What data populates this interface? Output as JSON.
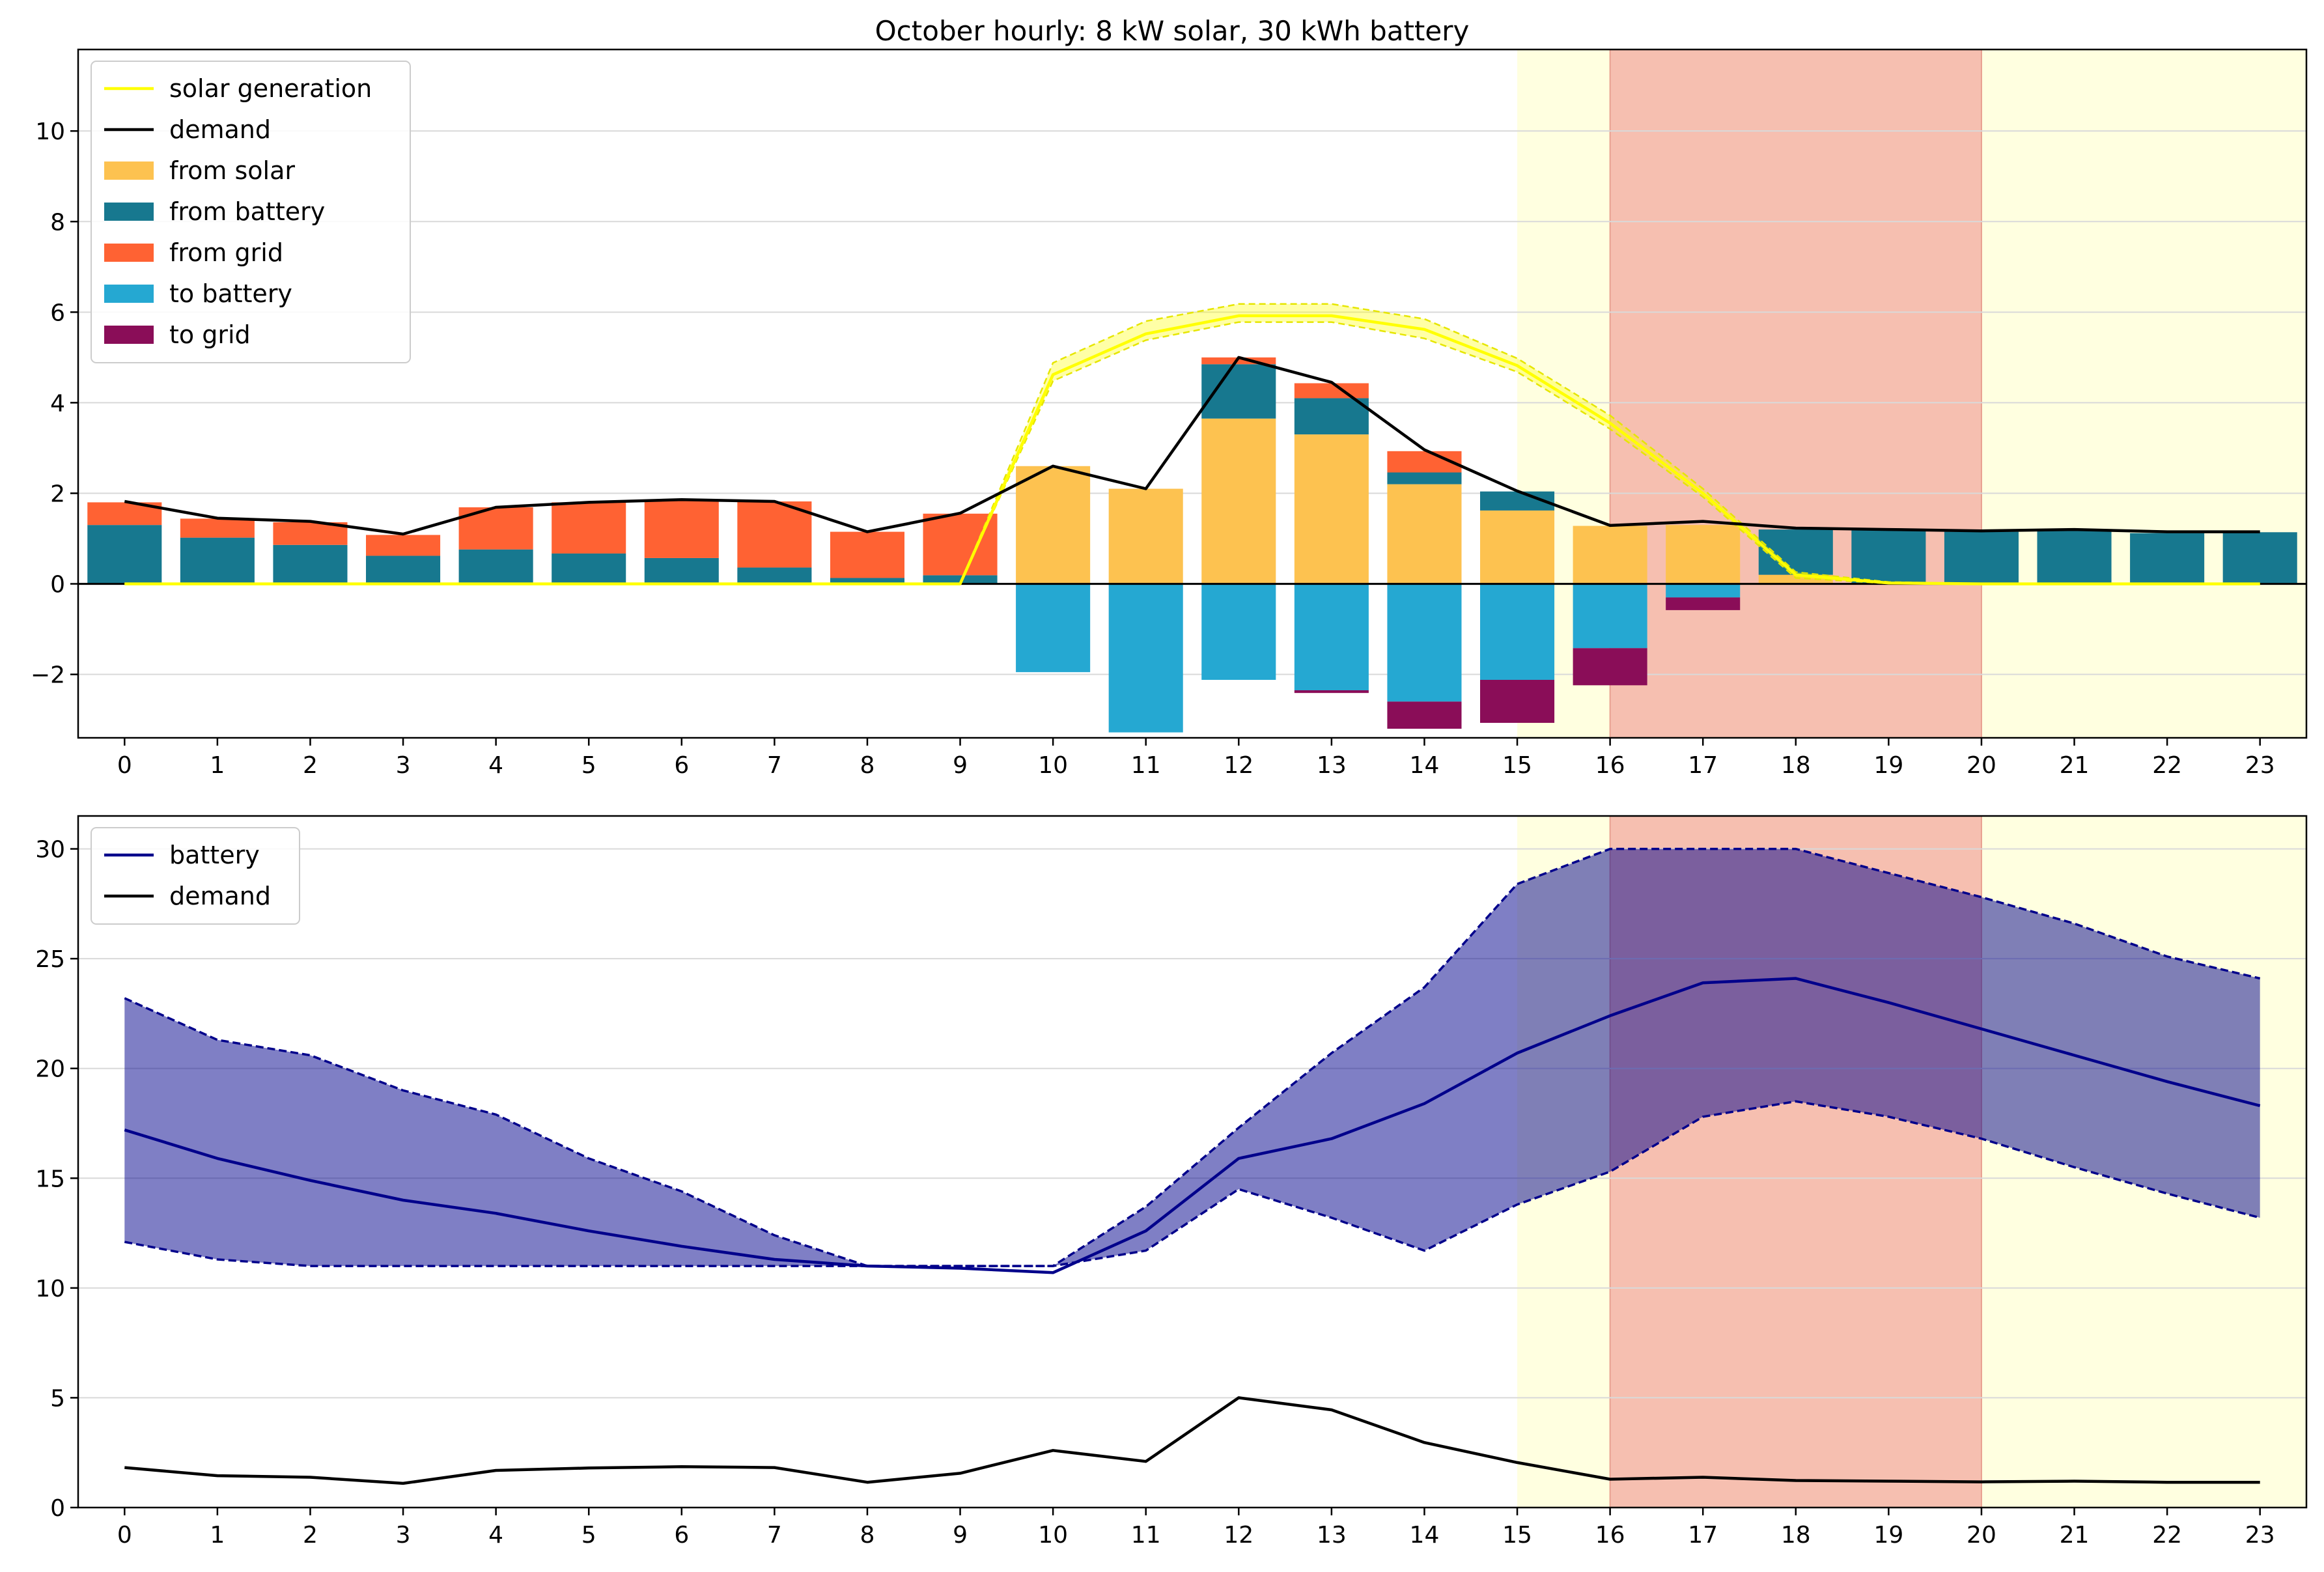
{
  "chart_data": [
    {
      "type": "bar",
      "title": "October hourly: 8 kW solar, 30 kWh battery",
      "xlabel": "",
      "ylabel": "",
      "x": [
        0,
        1,
        2,
        3,
        4,
        5,
        6,
        7,
        8,
        9,
        10,
        11,
        12,
        13,
        14,
        15,
        16,
        17,
        18,
        19,
        20,
        21,
        22,
        23
      ],
      "xticks": [
        "0",
        "1",
        "2",
        "3",
        "4",
        "5",
        "6",
        "7",
        "8",
        "9",
        "10",
        "11",
        "12",
        "13",
        "14",
        "15",
        "16",
        "17",
        "18",
        "19",
        "20",
        "21",
        "22",
        "23"
      ],
      "xlim": [
        -0.5,
        23.5
      ],
      "ylim": [
        -3.4,
        11.8
      ],
      "yticks": [
        -2,
        0,
        2,
        4,
        6,
        8,
        10
      ],
      "ytick_labels": [
        "−2",
        "0",
        "2",
        "4",
        "6",
        "8",
        "10"
      ],
      "grid": "horizontal",
      "legend_position": "top-left",
      "shaded_regions": [
        {
          "x0": 15,
          "x1": 23.5,
          "color": "#ffffe0"
        },
        {
          "x0": 16,
          "x1": 20,
          "color": "#f6bfb0"
        }
      ],
      "bar_stacks": {
        "positive": [
          {
            "name": "from solar",
            "color": "#fdc250",
            "values": [
              0,
              0,
              0,
              0,
              0,
              0,
              0,
              0,
              0,
              0,
              2.6,
              2.1,
              3.65,
              3.3,
              2.2,
              1.62,
              1.28,
              1.3,
              0.2,
              0,
              0,
              0,
              0,
              0
            ]
          },
          {
            "name": "from battery",
            "color": "#17788f",
            "values": [
              1.3,
              1.02,
              0.86,
              0.62,
              0.76,
              0.67,
              0.57,
              0.36,
              0.13,
              0.19,
              0,
              0,
              1.2,
              0.8,
              0.26,
              0.42,
              0,
              0,
              1.0,
              1.18,
              1.15,
              1.17,
              1.12,
              1.14
            ]
          },
          {
            "name": "from grid",
            "color": "#ff6233",
            "values": [
              0.5,
              0.42,
              0.5,
              0.46,
              0.93,
              1.13,
              1.28,
              1.46,
              1.02,
              1.36,
              0,
              0,
              0.15,
              0.33,
              0.47,
              0,
              0,
              0,
              0,
              0,
              0,
              0,
              0,
              0
            ]
          }
        ],
        "negative": [
          {
            "name": "to battery",
            "color": "#25a8d2",
            "values": [
              0,
              0,
              0,
              0,
              0,
              0,
              0,
              0,
              0,
              0,
              1.95,
              3.28,
              2.12,
              2.35,
              2.6,
              2.12,
              1.42,
              0.3,
              0,
              0,
              0,
              0,
              0,
              0
            ]
          },
          {
            "name": "to grid",
            "color": "#8a0d58",
            "values": [
              0,
              0,
              0,
              0,
              0,
              0,
              0,
              0,
              0,
              0,
              0,
              0,
              0,
              0.06,
              0.6,
              0.95,
              0.82,
              0.28,
              0,
              0,
              0,
              0,
              0,
              0
            ]
          }
        ]
      },
      "series": [
        {
          "name": "solar generation",
          "color": "#ffff00",
          "values": [
            0,
            0,
            0,
            0,
            0,
            0,
            0,
            0,
            0,
            0,
            4.62,
            5.52,
            5.92,
            5.92,
            5.62,
            4.82,
            3.55,
            2.0,
            0.2,
            0.02,
            0,
            0,
            0,
            0
          ],
          "band_low": [
            0,
            0,
            0,
            0,
            0,
            0,
            0,
            0,
            0,
            0,
            4.48,
            5.38,
            5.78,
            5.78,
            5.42,
            4.68,
            3.42,
            1.92,
            0.13,
            0.01,
            0,
            0,
            0,
            0
          ],
          "band_high": [
            0,
            0,
            0,
            0,
            0,
            0,
            0,
            0,
            0,
            0,
            4.88,
            5.8,
            6.18,
            6.18,
            5.85,
            4.98,
            3.72,
            2.1,
            0.26,
            0.04,
            0,
            0,
            0,
            0
          ]
        },
        {
          "name": "demand",
          "color": "#000000",
          "values": [
            1.82,
            1.45,
            1.38,
            1.1,
            1.69,
            1.8,
            1.86,
            1.82,
            1.15,
            1.56,
            2.6,
            2.1,
            5.0,
            4.45,
            2.96,
            2.05,
            1.29,
            1.38,
            1.23,
            1.2,
            1.17,
            1.2,
            1.15,
            1.15
          ]
        }
      ],
      "legend": [
        "solar generation",
        "demand",
        "from solar",
        "from battery",
        "from grid",
        "to battery",
        "to grid"
      ]
    },
    {
      "type": "line",
      "title": "",
      "xlabel": "",
      "ylabel": "",
      "x": [
        0,
        1,
        2,
        3,
        4,
        5,
        6,
        7,
        8,
        9,
        10,
        11,
        12,
        13,
        14,
        15,
        16,
        17,
        18,
        19,
        20,
        21,
        22,
        23
      ],
      "xticks": [
        "0",
        "1",
        "2",
        "3",
        "4",
        "5",
        "6",
        "7",
        "8",
        "9",
        "10",
        "11",
        "12",
        "13",
        "14",
        "15",
        "16",
        "17",
        "18",
        "19",
        "20",
        "21",
        "22",
        "23"
      ],
      "xlim": [
        -0.5,
        23.5
      ],
      "ylim": [
        0,
        31.5
      ],
      "yticks": [
        0,
        5,
        10,
        15,
        20,
        25,
        30
      ],
      "ytick_labels": [
        "0",
        "5",
        "10",
        "15",
        "20",
        "25",
        "30"
      ],
      "grid": "horizontal",
      "legend_position": "top-left",
      "shaded_regions": [
        {
          "x0": 15,
          "x1": 23.5,
          "color": "#ffffe0"
        },
        {
          "x0": 16,
          "x1": 20,
          "color": "#f6bfb0"
        }
      ],
      "band": {
        "color": "#00008b",
        "low": [
          12.1,
          11.3,
          11.0,
          11.0,
          11.0,
          11.0,
          11.0,
          11.0,
          11.0,
          11.0,
          11.0,
          11.7,
          14.5,
          13.2,
          11.7,
          13.8,
          15.3,
          17.8,
          18.5,
          17.8,
          16.8,
          15.5,
          14.3,
          13.2
        ],
        "high": [
          23.2,
          21.3,
          20.6,
          19.0,
          17.9,
          15.9,
          14.4,
          12.4,
          11.0,
          11.0,
          11.0,
          13.7,
          17.3,
          20.7,
          23.7,
          28.4,
          30.0,
          30.0,
          30.0,
          28.9,
          27.8,
          26.6,
          25.1,
          24.1
        ]
      },
      "series": [
        {
          "name": "battery",
          "color": "#00008b",
          "values": [
            17.2,
            15.9,
            14.9,
            14.0,
            13.4,
            12.6,
            11.9,
            11.3,
            11.0,
            10.9,
            10.7,
            12.6,
            15.9,
            16.8,
            18.4,
            20.7,
            22.4,
            23.9,
            24.1,
            23.0,
            21.8,
            20.6,
            19.4,
            18.3
          ]
        },
        {
          "name": "demand",
          "color": "#000000",
          "values": [
            1.82,
            1.45,
            1.38,
            1.1,
            1.69,
            1.8,
            1.86,
            1.82,
            1.15,
            1.56,
            2.6,
            2.1,
            5.0,
            4.45,
            2.96,
            2.05,
            1.29,
            1.38,
            1.23,
            1.2,
            1.17,
            1.2,
            1.15,
            1.15
          ]
        }
      ],
      "legend": [
        "battery",
        "demand"
      ]
    }
  ]
}
